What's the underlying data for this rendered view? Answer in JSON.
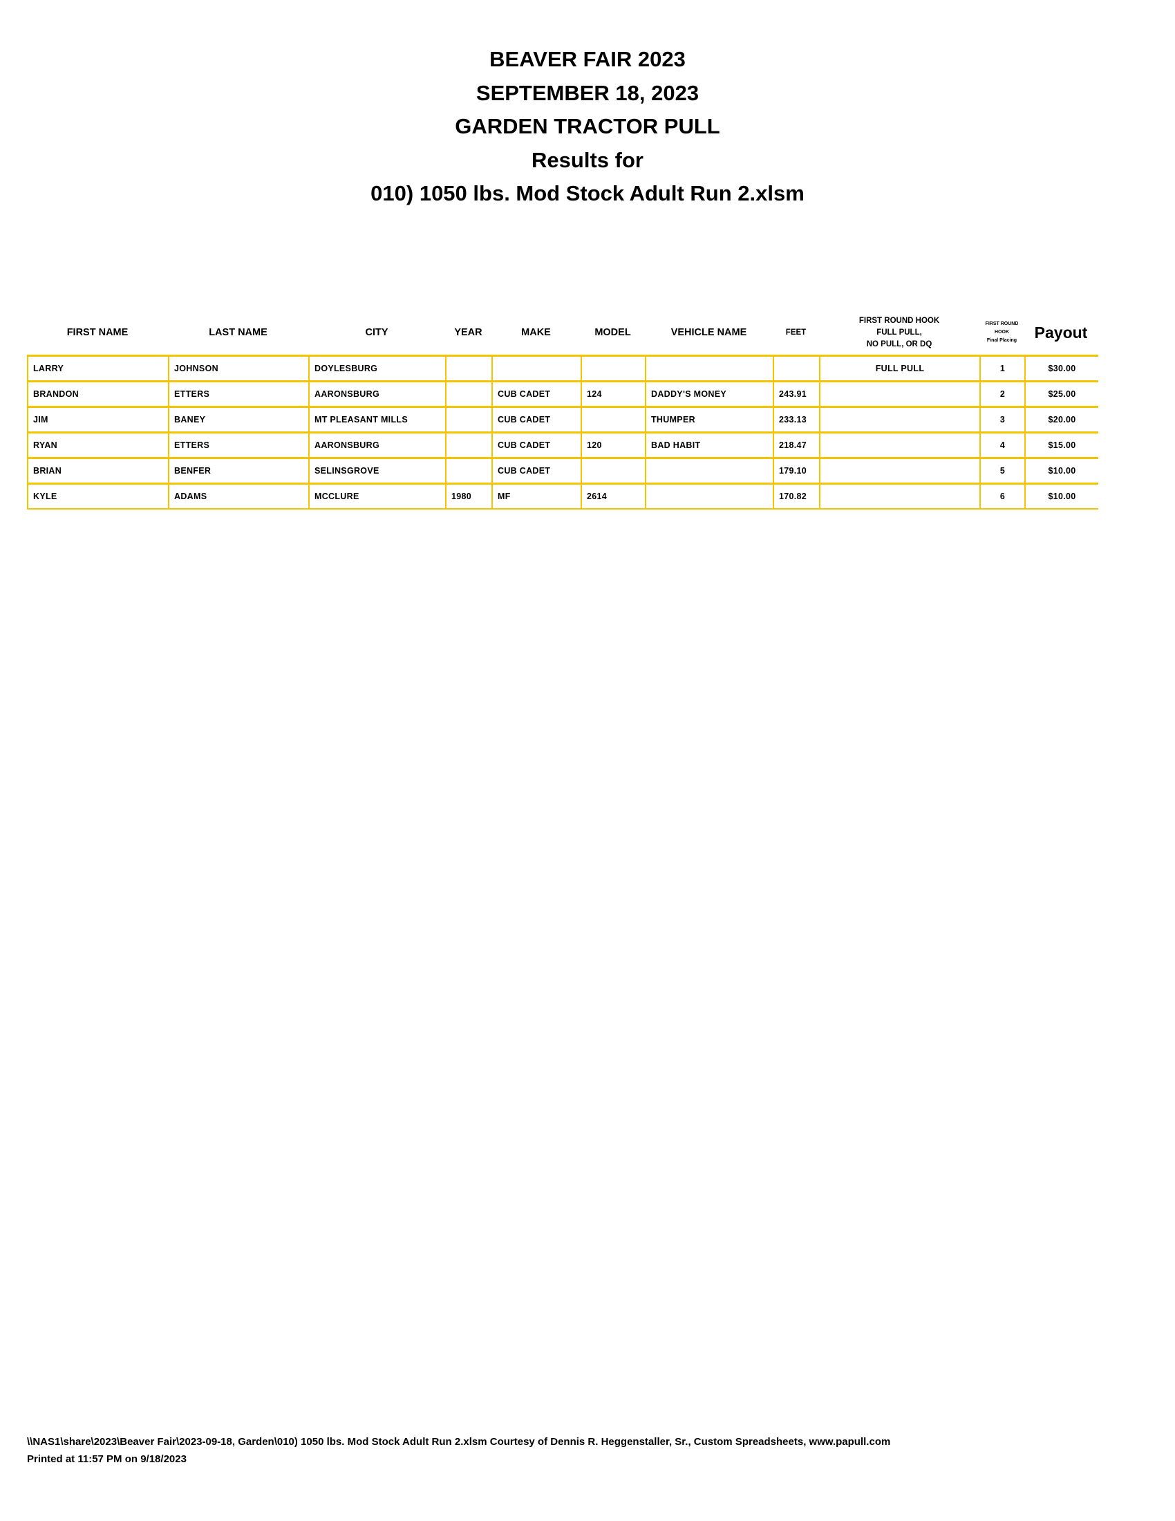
{
  "titles": [
    "BEAVER FAIR 2023",
    "SEPTEMBER 18, 2023",
    "GARDEN TRACTOR PULL",
    "Results for",
    "010) 1050 lbs. Mod Stock Adult Run 2.xlsm"
  ],
  "columns": {
    "first_name": "FIRST NAME",
    "last_name": "LAST NAME",
    "city": "CITY",
    "year": "YEAR",
    "make": "MAKE",
    "model": "MODEL",
    "vehicle_name": "VEHICLE NAME",
    "feet": "FEET",
    "hook_1": "FIRST ROUND HOOK",
    "hook_2": "FULL PULL,",
    "hook_3": "NO PULL, OR DQ",
    "placing_1": "FIRST ROUND",
    "placing_2": "HOOK",
    "placing_3": "Final Placing",
    "payout": "Payout"
  },
  "rows": [
    [
      "LARRY",
      "JOHNSON",
      "DOYLESBURG",
      "",
      "",
      "",
      "",
      "",
      "FULL PULL",
      "1",
      "$30.00"
    ],
    [
      "BRANDON",
      "ETTERS",
      "AARONSBURG",
      "",
      "CUB CADET",
      "124",
      "DADDY'S MONEY",
      "243.91",
      "",
      "2",
      "$25.00"
    ],
    [
      "JIM",
      "BANEY",
      "MT PLEASANT MILLS",
      "",
      "CUB CADET",
      "",
      "THUMPER",
      "233.13",
      "",
      "3",
      "$20.00"
    ],
    [
      "RYAN",
      "ETTERS",
      "AARONSBURG",
      "",
      "CUB CADET",
      "120",
      "BAD HABIT",
      "218.47",
      "",
      "4",
      "$15.00"
    ],
    [
      "BRIAN",
      "BENFER",
      "SELINSGROVE",
      "",
      "CUB CADET",
      "",
      "",
      "179.10",
      "",
      "5",
      "$10.00"
    ],
    [
      "KYLE",
      "ADAMS",
      "MCCLURE",
      "1980",
      "MF",
      "2614",
      "",
      "170.82",
      "",
      "6",
      "$10.00"
    ]
  ],
  "footer": {
    "path": "\\\\NAS1\\share\\2023\\Beaver Fair\\2023-09-18, Garden\\010) 1050 lbs. Mod Stock Adult Run 2.xlsm  Courtesy of Dennis R. Heggenstaller, Sr., Custom Spreadsheets, www.papull.com",
    "printed": "Printed at 11:57 PM on 9/18/2023"
  },
  "colors": {
    "grid": "#f5c400"
  }
}
